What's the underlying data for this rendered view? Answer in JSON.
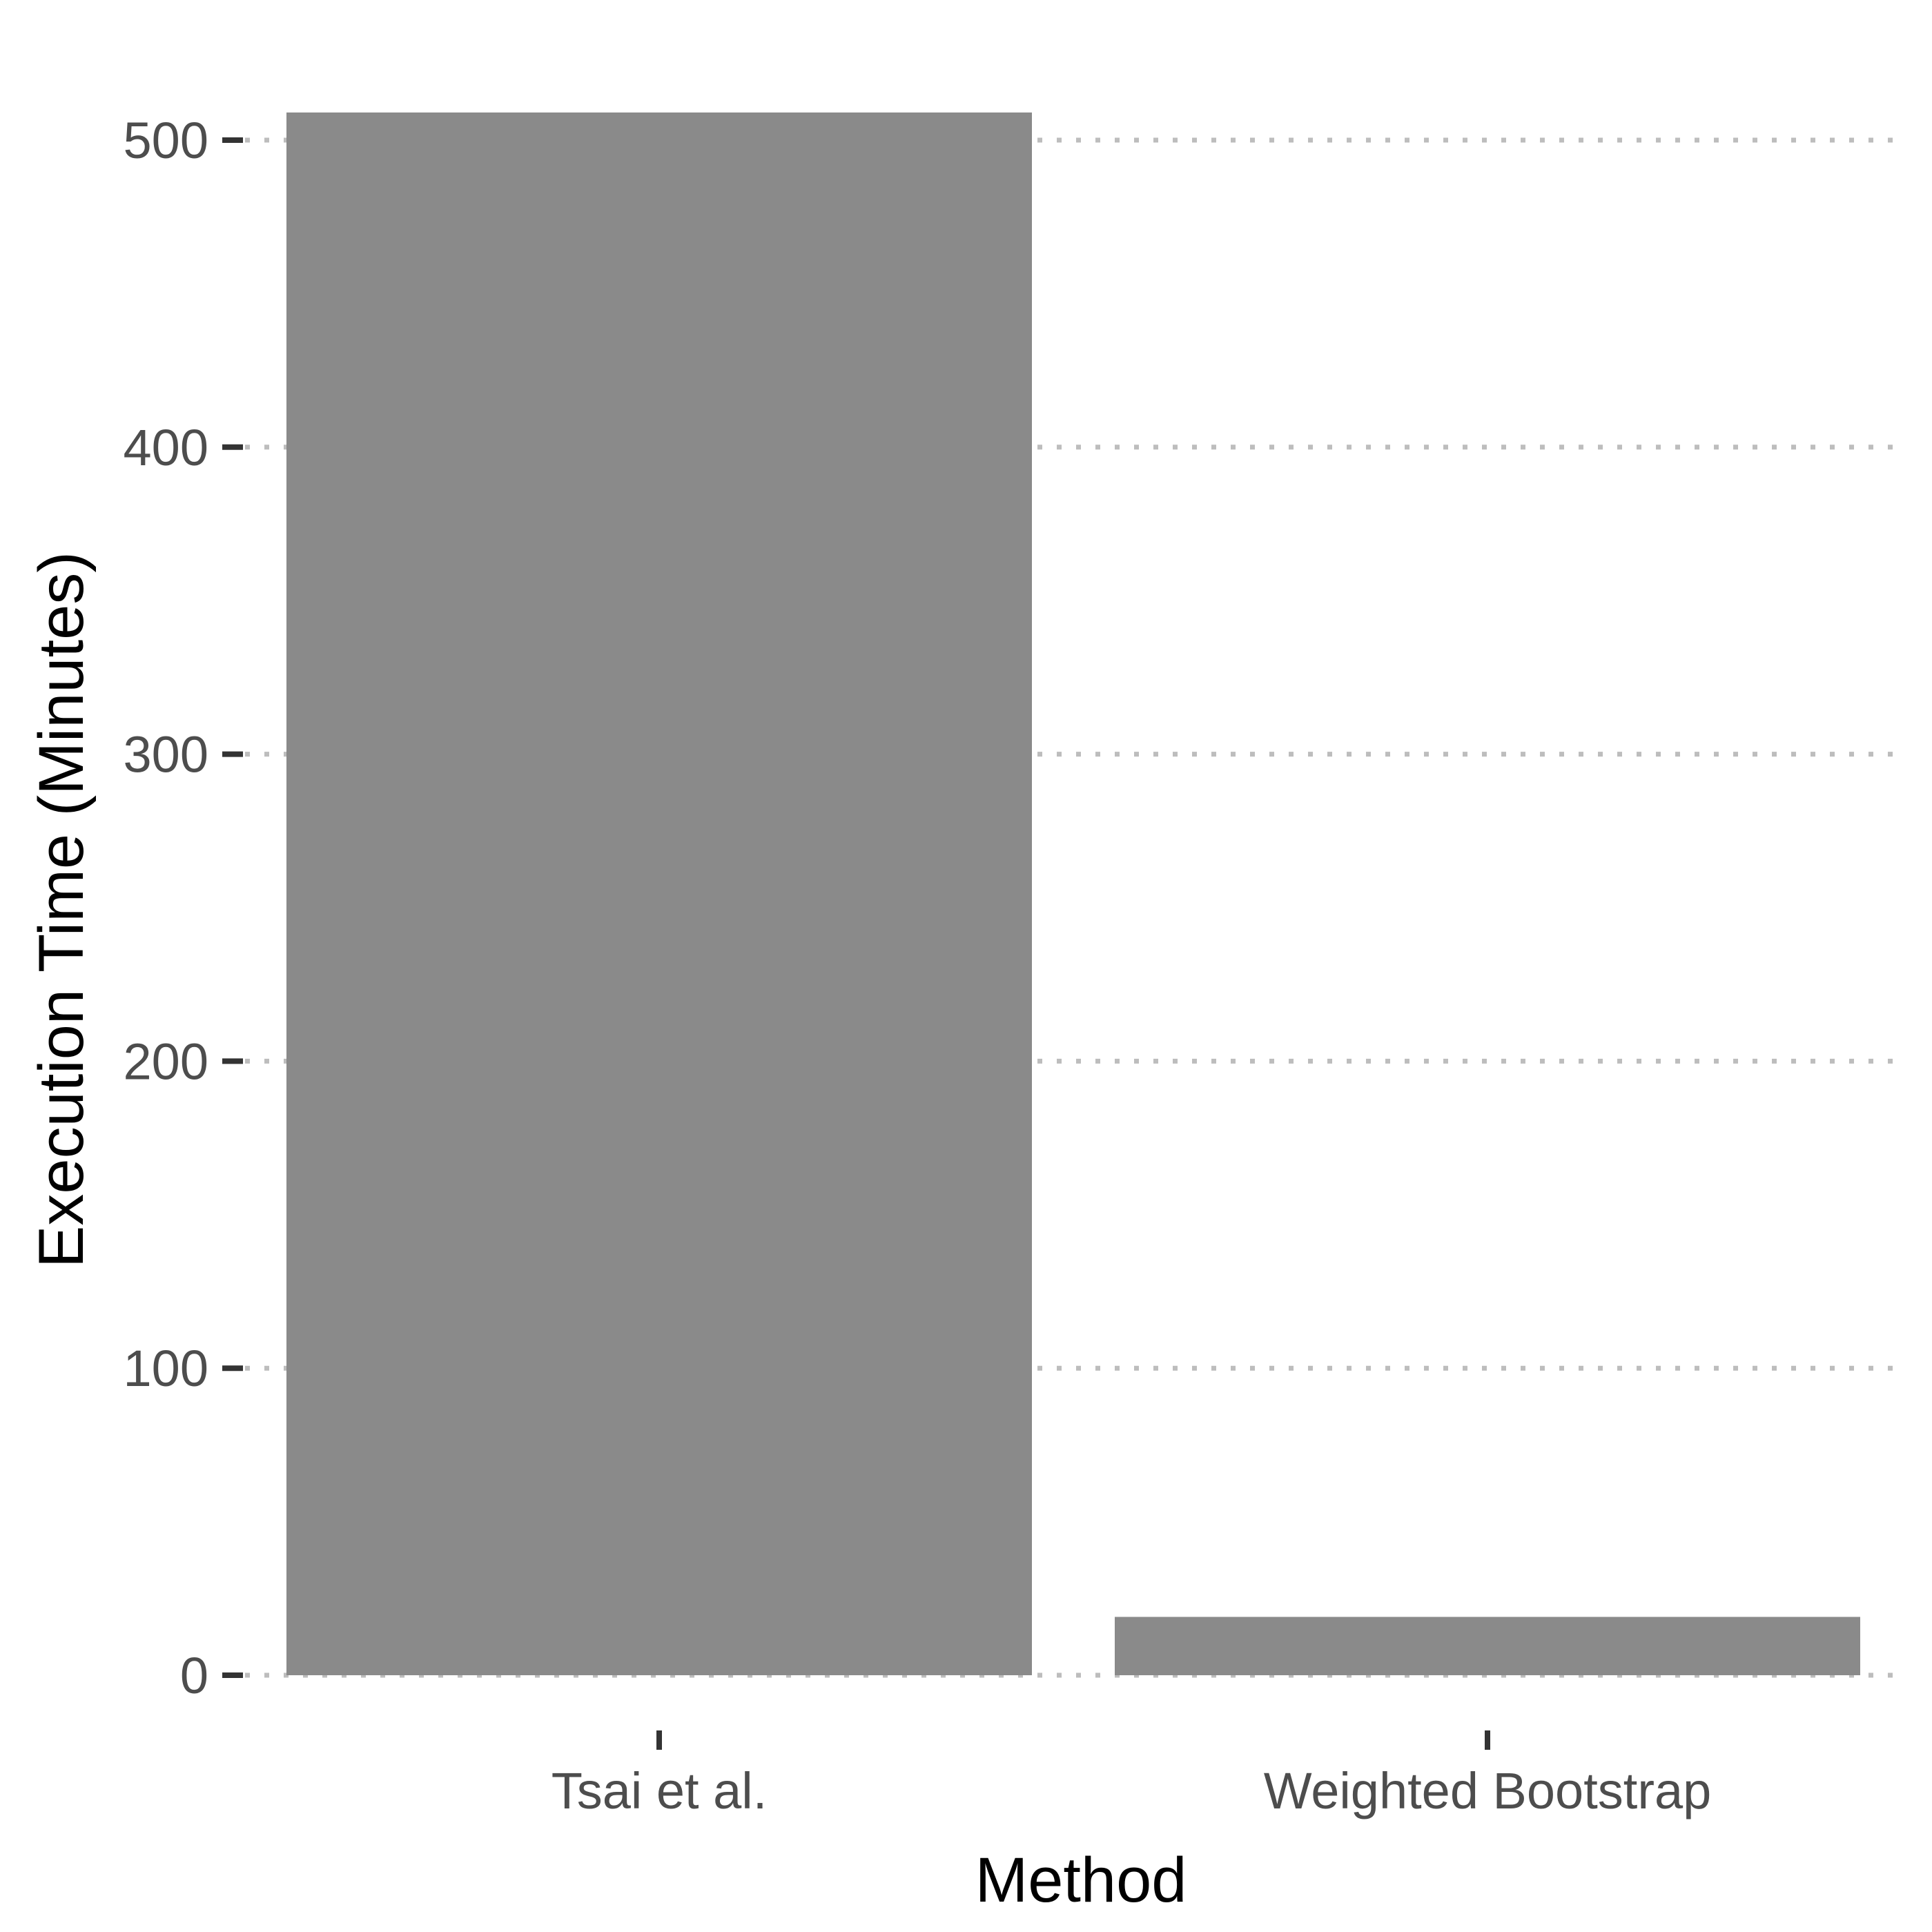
{
  "chart_data": {
    "type": "bar",
    "title": "",
    "xlabel": "Method",
    "ylabel": "Execution Time (Minutes)",
    "categories": [
      "Tsai et al.",
      "Weighted Bootstrap"
    ],
    "values": [
      509,
      19
    ],
    "ylim": [
      0,
      520
    ],
    "yticks": [
      0,
      100,
      200,
      300,
      400,
      500
    ],
    "ytick_labels": [
      "0",
      "100",
      "200",
      "300",
      "400",
      "500"
    ],
    "grid": "horizontal dotted",
    "legend": "none",
    "bar_color": "#8a8a8a",
    "grid_color": "#bdbdbd",
    "tick_color": "#333333"
  }
}
